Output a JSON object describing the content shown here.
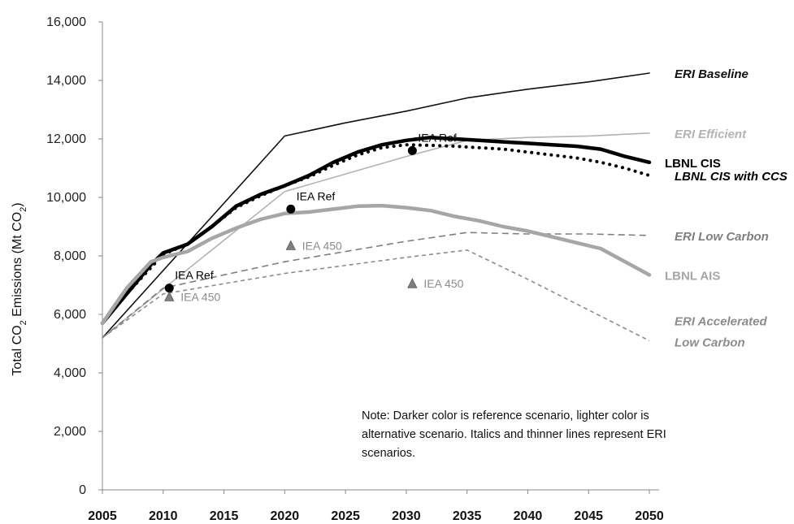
{
  "chart_data": {
    "type": "line",
    "xlabel": "",
    "ylabel_parts": {
      "pre": "Total CO",
      "sub1": "2",
      "mid": " Emissions (Mt CO",
      "sub2": "2",
      "post": ")"
    },
    "xlim": [
      2005,
      2050
    ],
    "ylim": [
      0,
      16000
    ],
    "xticks": [
      "2005",
      "2010",
      "2015",
      "2020",
      "2025",
      "2030",
      "2035",
      "2040",
      "2045",
      "2050"
    ],
    "yticks": [
      "0",
      "2,000",
      "4,000",
      "6,000",
      "8,000",
      "10,000",
      "12,000",
      "14,000",
      "16,000"
    ],
    "grid": false,
    "series": [
      {
        "name": "ERI Baseline",
        "color": "#111111",
        "style": "solid-thin",
        "label_lines": [
          "ERI Baseline"
        ],
        "italic": true,
        "x": [
          2005,
          2020,
          2025,
          2030,
          2035,
          2040,
          2045,
          2050
        ],
        "y": [
          5200,
          12100,
          12550,
          12950,
          13400,
          13700,
          13950,
          14250
        ]
      },
      {
        "name": "ERI Efficient",
        "color": "#b3b3b3",
        "style": "solid-thin",
        "label_lines": [
          "ERI Efficient"
        ],
        "italic": true,
        "x": [
          2005,
          2020,
          2030,
          2035,
          2040,
          2045,
          2050
        ],
        "y": [
          5200,
          10200,
          11400,
          11950,
          12050,
          12100,
          12200
        ]
      },
      {
        "name": "LBNL CIS",
        "color": "#000000",
        "style": "solid-thick",
        "label_lines": [
          "LBNL CIS"
        ],
        "italic": false,
        "x": [
          2005,
          2007,
          2009,
          2010,
          2012,
          2014,
          2016,
          2018,
          2020,
          2022,
          2024,
          2026,
          2028,
          2030,
          2032,
          2034,
          2036,
          2038,
          2040,
          2042,
          2044,
          2046,
          2048,
          2050
        ],
        "y": [
          5700,
          6700,
          7700,
          8100,
          8400,
          9000,
          9700,
          10100,
          10400,
          10750,
          11200,
          11550,
          11800,
          11950,
          12050,
          12000,
          11950,
          11900,
          11850,
          11800,
          11750,
          11650,
          11400,
          11200
        ]
      },
      {
        "name": "LBNL CIS with CCS",
        "color": "#000000",
        "style": "dotted",
        "label_lines": [
          "LBNL CIS with CCS"
        ],
        "italic": true,
        "x": [
          2005,
          2007,
          2009,
          2010,
          2012,
          2014,
          2016,
          2018,
          2020,
          2022,
          2024,
          2026,
          2028,
          2030,
          2032,
          2034,
          2036,
          2038,
          2040,
          2042,
          2044,
          2046,
          2048,
          2050
        ],
        "y": [
          5700,
          6700,
          7600,
          8050,
          8400,
          9000,
          9650,
          10050,
          10400,
          10700,
          11100,
          11450,
          11700,
          11800,
          11780,
          11750,
          11700,
          11650,
          11550,
          11450,
          11350,
          11200,
          11000,
          10750
        ]
      },
      {
        "name": "ERI Low Carbon",
        "color": "#7f7f7f",
        "style": "dashed",
        "label_lines": [
          "ERI Low Carbon"
        ],
        "italic": true,
        "x": [
          2005,
          2010,
          2020,
          2030,
          2035,
          2040,
          2045,
          2050
        ],
        "y": [
          5200,
          6900,
          7800,
          8500,
          8800,
          8750,
          8750,
          8700
        ]
      },
      {
        "name": "LBNL AIS",
        "color": "#a6a6a6",
        "style": "solid-thick",
        "label_lines": [
          "LBNL AIS"
        ],
        "italic": false,
        "x": [
          2005,
          2007,
          2009,
          2010,
          2012,
          2014,
          2016,
          2018,
          2020,
          2022,
          2024,
          2026,
          2028,
          2030,
          2032,
          2034,
          2036,
          2038,
          2040,
          2042,
          2044,
          2046,
          2048,
          2050
        ],
        "y": [
          5700,
          6900,
          7800,
          7950,
          8150,
          8600,
          8950,
          9250,
          9450,
          9500,
          9600,
          9700,
          9720,
          9650,
          9550,
          9350,
          9200,
          9000,
          8850,
          8650,
          8450,
          8250,
          7800,
          7350
        ]
      },
      {
        "name": "ERI Accelerated Low Carbon",
        "color": "#8c8c8c",
        "style": "dashed-small",
        "label_lines": [
          "ERI Accelerated",
          "Low Carbon"
        ],
        "italic": true,
        "x": [
          2005,
          2010,
          2020,
          2030,
          2035,
          2040,
          2045,
          2050
        ],
        "y": [
          5200,
          6700,
          7400,
          7950,
          8200,
          7200,
          6150,
          5100
        ]
      }
    ],
    "markers": [
      {
        "label": "IEA Ref",
        "shape": "circle",
        "color": "#000000",
        "x": 2010.5,
        "y": 6900
      },
      {
        "label": "IEA Ref",
        "shape": "circle",
        "color": "#000000",
        "x": 2020.5,
        "y": 9600
      },
      {
        "label": "IEA Ref",
        "shape": "circle",
        "color": "#000000",
        "x": 2030.5,
        "y": 11600
      },
      {
        "label": "IEA 450",
        "shape": "triangle",
        "color": "#808080",
        "x": 2010.5,
        "y": 6600
      },
      {
        "label": "IEA 450",
        "shape": "triangle",
        "color": "#808080",
        "x": 2020.5,
        "y": 8350
      },
      {
        "label": "IEA 450",
        "shape": "triangle",
        "color": "#808080",
        "x": 2030.5,
        "y": 7050
      }
    ]
  },
  "note": "Note: Darker color is reference scenario, lighter color is alternative scenario. Italics and thinner lines represent  ERI scenarios."
}
